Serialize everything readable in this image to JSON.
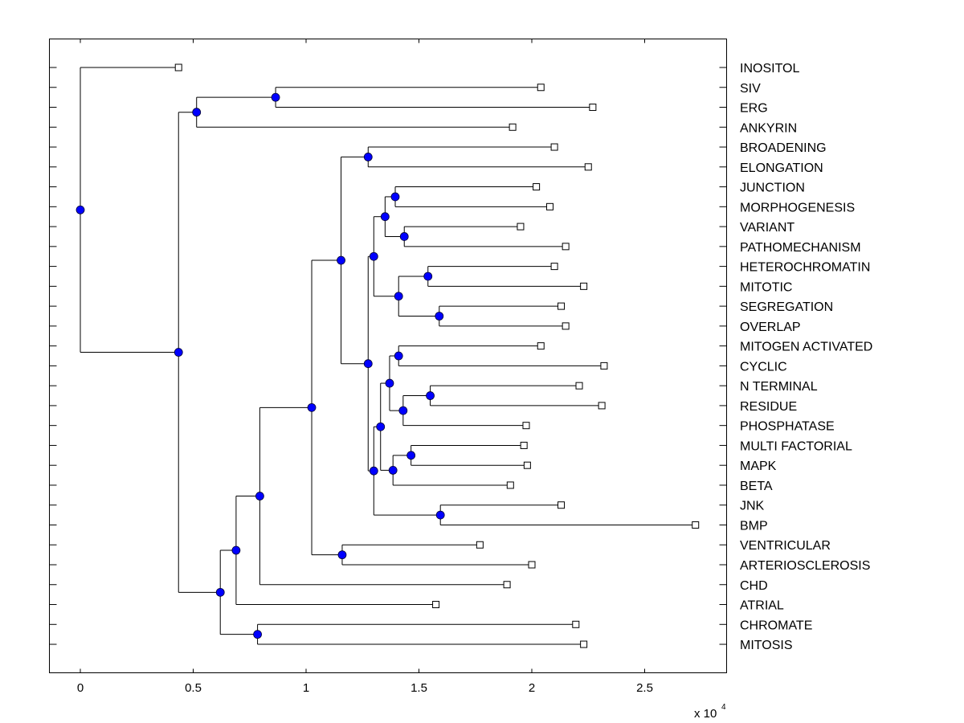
{
  "chart_data": {
    "type": "dendrogram",
    "title": "",
    "xlabel": "",
    "ylabel": "",
    "x_exponent_label": "x 10",
    "x_exponent": "4",
    "xlim": [
      -0.07,
      2.88
    ],
    "xticks": [
      0,
      0.5,
      1,
      1.5,
      2,
      2.5
    ],
    "xtick_labels": [
      "0",
      "0.5",
      "1",
      "1.5",
      "2",
      "2.5"
    ],
    "grid": false,
    "node_color": "#0000ff",
    "leaf_marker": "open-square",
    "leaves": [
      {
        "name": "INOSITOL",
        "x": 0.435
      },
      {
        "name": "SIV",
        "x": 2.04
      },
      {
        "name": "ERG",
        "x": 2.27
      },
      {
        "name": "ANKYRIN",
        "x": 1.915
      },
      {
        "name": "BROADENING",
        "x": 2.1
      },
      {
        "name": "ELONGATION",
        "x": 2.25
      },
      {
        "name": "JUNCTION",
        "x": 2.02
      },
      {
        "name": "MORPHOGENESIS",
        "x": 2.08
      },
      {
        "name": "VARIANT",
        "x": 1.95
      },
      {
        "name": "PATHOMECHANISM",
        "x": 2.15
      },
      {
        "name": "HETEROCHROMATIN",
        "x": 2.1
      },
      {
        "name": "MITOTIC",
        "x": 2.23
      },
      {
        "name": "SEGREGATION",
        "x": 2.13
      },
      {
        "name": "OVERLAP",
        "x": 2.15
      },
      {
        "name": "MITOGEN ACTIVATED",
        "x": 2.04
      },
      {
        "name": "CYCLIC",
        "x": 2.32
      },
      {
        "name": "N TERMINAL",
        "x": 2.21
      },
      {
        "name": "RESIDUE",
        "x": 2.31
      },
      {
        "name": "PHOSPHATASE",
        "x": 1.975
      },
      {
        "name": "MULTI FACTORIAL",
        "x": 1.965
      },
      {
        "name": "MAPK",
        "x": 1.98
      },
      {
        "name": "BETA",
        "x": 1.905
      },
      {
        "name": "JNK",
        "x": 2.13
      },
      {
        "name": "BMP",
        "x": 2.725
      },
      {
        "name": "VENTRICULAR",
        "x": 1.77
      },
      {
        "name": "ARTERIOSCLEROSIS",
        "x": 2.0
      },
      {
        "name": "CHD",
        "x": 1.89
      },
      {
        "name": "ATRIAL",
        "x": 1.575
      },
      {
        "name": "CHROMATE",
        "x": 2.195
      },
      {
        "name": "MITOSIS",
        "x": 2.23
      }
    ],
    "nodes": [
      {
        "id": "root",
        "x": 0.0,
        "children": [
          "L:INOSITOL",
          "A"
        ]
      },
      {
        "id": "A",
        "x": 0.435,
        "children": [
          "B",
          "C"
        ]
      },
      {
        "id": "B",
        "x": 0.515,
        "children": [
          "D",
          "L:ANKYRIN"
        ]
      },
      {
        "id": "D",
        "x": 0.865,
        "children": [
          "L:SIV",
          "L:ERG"
        ]
      },
      {
        "id": "C",
        "x": 0.62,
        "children": [
          "E",
          "F"
        ]
      },
      {
        "id": "F",
        "x": 0.785,
        "children": [
          "L:CHROMATE",
          "L:MITOSIS"
        ]
      },
      {
        "id": "E",
        "x": 0.69,
        "children": [
          "G",
          "L:ATRIAL"
        ]
      },
      {
        "id": "G",
        "x": 0.795,
        "children": [
          "H",
          "L:CHD"
        ]
      },
      {
        "id": "H",
        "x": 1.025,
        "children": [
          "I",
          "J"
        ]
      },
      {
        "id": "J",
        "x": 1.16,
        "children": [
          "L:VENTRICULAR",
          "L:ARTERIOSCLEROSIS"
        ]
      },
      {
        "id": "I",
        "x": 1.155,
        "children": [
          "K",
          "Lm"
        ]
      },
      {
        "id": "K",
        "x": 1.275,
        "children": [
          "L:BROADENING",
          "L:ELONGATION"
        ]
      },
      {
        "id": "Lm",
        "x": 1.275,
        "children": [
          "M",
          "N"
        ]
      },
      {
        "id": "M",
        "x": 1.3,
        "children": [
          "O",
          "P"
        ]
      },
      {
        "id": "O",
        "x": 1.35,
        "children": [
          "Q",
          "R"
        ]
      },
      {
        "id": "Q",
        "x": 1.395,
        "children": [
          "L:JUNCTION",
          "L:MORPHOGENESIS"
        ]
      },
      {
        "id": "R",
        "x": 1.435,
        "children": [
          "L:VARIANT",
          "L:PATHOMECHANISM"
        ]
      },
      {
        "id": "P",
        "x": 1.41,
        "children": [
          "S",
          "T"
        ]
      },
      {
        "id": "S",
        "x": 1.54,
        "children": [
          "L:HETEROCHROMATIN",
          "L:MITOTIC"
        ]
      },
      {
        "id": "T",
        "x": 1.59,
        "children": [
          "L:SEGREGATION",
          "L:OVERLAP"
        ]
      },
      {
        "id": "N",
        "x": 1.3,
        "children": [
          "U",
          "V"
        ]
      },
      {
        "id": "V",
        "x": 1.595,
        "children": [
          "L:JNK",
          "L:BMP"
        ]
      },
      {
        "id": "U",
        "x": 1.33,
        "children": [
          "W",
          "X"
        ]
      },
      {
        "id": "W",
        "x": 1.37,
        "children": [
          "Y",
          "Z"
        ]
      },
      {
        "id": "Y",
        "x": 1.41,
        "children": [
          "L:MITOGEN ACTIVATED",
          "L:CYCLIC"
        ]
      },
      {
        "id": "Z",
        "x": 1.43,
        "children": [
          "AA",
          "L:PHOSPHATASE"
        ]
      },
      {
        "id": "AA",
        "x": 1.55,
        "children": [
          "L:N TERMINAL",
          "L:RESIDUE"
        ]
      },
      {
        "id": "X",
        "x": 1.385,
        "children": [
          "AB",
          "L:BETA"
        ]
      },
      {
        "id": "AB",
        "x": 1.465,
        "children": [
          "L:MULTI FACTORIAL",
          "L:MAPK"
        ]
      }
    ]
  }
}
